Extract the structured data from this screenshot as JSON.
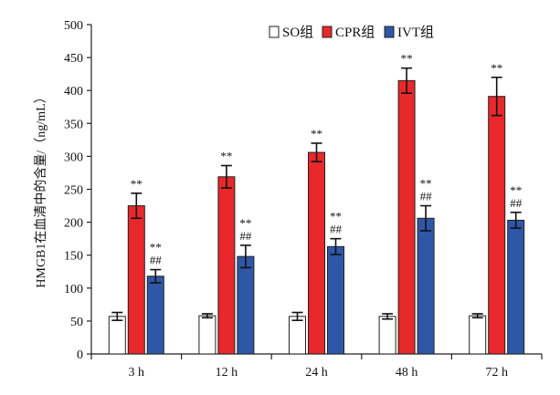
{
  "chart_data": {
    "type": "bar",
    "title": "",
    "xlabel": "",
    "ylabel": "HMGB1在血清中的含量/（ng/mL）",
    "ylim": [
      0,
      500
    ],
    "yticks": [
      0,
      50,
      100,
      150,
      200,
      250,
      300,
      350,
      400,
      450,
      500
    ],
    "categories": [
      "3 h",
      "12 h",
      "24 h",
      "48 h",
      "72 h"
    ],
    "legend_position": "top-right",
    "grid": false,
    "series": [
      {
        "name": "SO组",
        "color": "#ffffff",
        "values": [
          57,
          58,
          57,
          57,
          58
        ],
        "errors": [
          6,
          3,
          6,
          4,
          3
        ],
        "annotations": [
          [],
          [],
          [],
          [],
          []
        ]
      },
      {
        "name": "CPR组",
        "color": "#e8282b",
        "values": [
          225,
          269,
          306,
          415,
          391
        ],
        "errors": [
          19,
          17,
          14,
          19,
          29
        ],
        "annotations": [
          [
            "**"
          ],
          [
            "**"
          ],
          [
            "**"
          ],
          [
            "**"
          ],
          [
            "**"
          ]
        ]
      },
      {
        "name": "IVT组",
        "color": "#2e57a8",
        "values": [
          118,
          148,
          163,
          206,
          203
        ],
        "errors": [
          10,
          17,
          12,
          19,
          12
        ],
        "annotations": [
          [
            "**",
            "##"
          ],
          [
            "**",
            "##"
          ],
          [
            "**",
            "##"
          ],
          [
            "**",
            "##"
          ],
          [
            "**",
            "##"
          ]
        ]
      }
    ]
  }
}
